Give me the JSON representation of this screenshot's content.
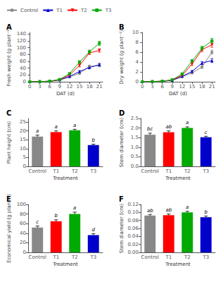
{
  "chart_data": [
    {
      "type": "line",
      "title": "A",
      "xlabel": "DAT (d)",
      "ylabel": "Fresh weight (g plant⁻¹)",
      "x": [
        0,
        3,
        6,
        9,
        12,
        15,
        18,
        21
      ],
      "xlim": [
        -0.5,
        22
      ],
      "xticks": [
        0,
        3,
        6,
        9,
        12,
        15,
        18,
        21
      ],
      "ylim": [
        0,
        145
      ],
      "yticks": [
        0,
        20,
        40,
        60,
        80,
        100,
        120,
        140
      ],
      "grid": false,
      "legend": "upper left",
      "series": [
        {
          "name": "Control",
          "color": "#888888",
          "marker": "circle",
          "values": [
            0,
            0.5,
            1.5,
            5,
            14,
            25,
            45,
            48
          ],
          "errors": [
            0,
            0,
            0,
            1.5,
            2,
            3,
            4,
            4
          ]
        },
        {
          "name": "T1",
          "color": "#0000cc",
          "marker": "triangle-up",
          "values": [
            0,
            0.5,
            1.5,
            5.5,
            16,
            30,
            42,
            50
          ],
          "errors": [
            0,
            0,
            0,
            1.5,
            2,
            3,
            4,
            4
          ]
        },
        {
          "name": "T2",
          "color": "#ff0000",
          "marker": "triangle-down",
          "values": [
            0,
            0.5,
            1.5,
            6,
            20,
            48,
            85,
            92
          ],
          "errors": [
            0,
            0,
            0,
            1.5,
            2,
            4,
            5,
            5
          ]
        },
        {
          "name": "T3",
          "color": "#00aa00",
          "marker": "square",
          "values": [
            0,
            0.5,
            2,
            7,
            24,
            58,
            88,
            113
          ],
          "errors": [
            0,
            0,
            0,
            1.5,
            2,
            4,
            5,
            6
          ]
        }
      ]
    },
    {
      "type": "line",
      "title": "B",
      "xlabel": "DAT (d)",
      "ylabel": "Dry weight (g plant⁻¹)",
      "x": [
        0,
        3,
        6,
        9,
        12,
        15,
        18,
        21
      ],
      "xlim": [
        -0.5,
        22
      ],
      "xticks": [
        0,
        3,
        6,
        9,
        12,
        15,
        18,
        21
      ],
      "ylim": [
        0,
        10
      ],
      "yticks": [
        0,
        2,
        4,
        6,
        8,
        10
      ],
      "grid": false,
      "series": [
        {
          "name": "Control",
          "color": "#888888",
          "marker": "circle",
          "values": [
            0,
            0.05,
            0.1,
            0.3,
            1.0,
            1.8,
            3.0,
            6.0
          ],
          "errors": [
            0,
            0,
            0,
            0.05,
            0.1,
            0.2,
            0.3,
            0.4
          ]
        },
        {
          "name": "T1",
          "color": "#0000cc",
          "marker": "triangle-up",
          "values": [
            0,
            0.05,
            0.1,
            0.3,
            1.1,
            2.1,
            3.8,
            4.3
          ],
          "errors": [
            0,
            0,
            0,
            0.05,
            0.1,
            0.2,
            0.3,
            0.4
          ]
        },
        {
          "name": "T2",
          "color": "#ff0000",
          "marker": "triangle-down",
          "values": [
            0,
            0.05,
            0.12,
            0.35,
            1.3,
            3.6,
            6.5,
            7.5
          ],
          "errors": [
            0,
            0,
            0,
            0.05,
            0.1,
            0.3,
            0.4,
            0.5
          ]
        },
        {
          "name": "T3",
          "color": "#00aa00",
          "marker": "square",
          "values": [
            0,
            0.05,
            0.12,
            0.4,
            1.6,
            4.2,
            6.8,
            8.3
          ],
          "errors": [
            0,
            0,
            0,
            0.05,
            0.1,
            0.3,
            0.4,
            0.5
          ]
        }
      ]
    },
    {
      "type": "bar",
      "title": "C",
      "xlabel": "Treatment",
      "ylabel": "Plant height (cm)",
      "categories": [
        "Control",
        "T1",
        "T2",
        "T3"
      ],
      "values": [
        16.8,
        19.3,
        20.3,
        12.0
      ],
      "errors": [
        0.8,
        0.7,
        0.6,
        0.5
      ],
      "annotations": [
        "a",
        "a",
        "a",
        "b"
      ],
      "colors": [
        "#888888",
        "#ff0000",
        "#00aa00",
        "#0000cc"
      ],
      "ylim": [
        0,
        27
      ],
      "yticks": [
        0,
        5,
        10,
        15,
        20,
        25
      ],
      "grid": false
    },
    {
      "type": "bar",
      "title": "D",
      "xlabel": "Treatment",
      "ylabel": "Stem diameter (cm)",
      "categories": [
        "Control",
        "T1",
        "T2",
        "T3"
      ],
      "values": [
        1.65,
        1.78,
        2.0,
        1.52
      ],
      "errors": [
        0.08,
        0.07,
        0.06,
        0.05
      ],
      "annotations": [
        "bc",
        "ab",
        "a",
        "c"
      ],
      "colors": [
        "#888888",
        "#ff0000",
        "#00aa00",
        "#0000cc"
      ],
      "ylim": [
        0,
        2.5
      ],
      "yticks": [
        {
          "value": 0,
          "label": "0.0"
        },
        0.5,
        {
          "value": 1,
          "label": "1.0"
        },
        1.5,
        {
          "value": 2,
          "label": "2.0"
        },
        2.5
      ],
      "grid": false
    },
    {
      "type": "bar",
      "title": "E",
      "xlabel": "Treatment",
      "ylabel": "Economical yield (g plant⁻¹)",
      "categories": [
        "Control",
        "T1",
        "T2",
        "T3"
      ],
      "values": [
        52,
        65,
        80,
        36
      ],
      "errors": [
        3,
        3,
        4,
        3
      ],
      "annotations": [
        "c",
        "b",
        "a",
        "d"
      ],
      "colors": [
        "#888888",
        "#ff0000",
        "#00aa00",
        "#0000cc"
      ],
      "ylim": [
        0,
        100
      ],
      "yticks": [
        0,
        20,
        40,
        60,
        80,
        100
      ],
      "grid": false
    },
    {
      "type": "bar",
      "title": "F",
      "xlabel": "Treatment",
      "ylabel": "Stem diameter (cm)",
      "categories": [
        "Control",
        "T1",
        "T2",
        "T3"
      ],
      "values": [
        0.092,
        0.093,
        0.1,
        0.088
      ],
      "errors": [
        0.003,
        0.003,
        0.003,
        0.003
      ],
      "annotations": [
        "ab",
        "ab",
        "a",
        "b"
      ],
      "colors": [
        "#888888",
        "#ff0000",
        "#00aa00",
        "#0000cc"
      ],
      "ylim": [
        0,
        0.12
      ],
      "yticks": [
        {
          "value": 0,
          "label": "0.00"
        },
        0.02,
        0.04,
        0.06,
        0.08,
        {
          "value": 0.1,
          "label": "0.10"
        },
        0.12
      ],
      "grid": false
    }
  ]
}
